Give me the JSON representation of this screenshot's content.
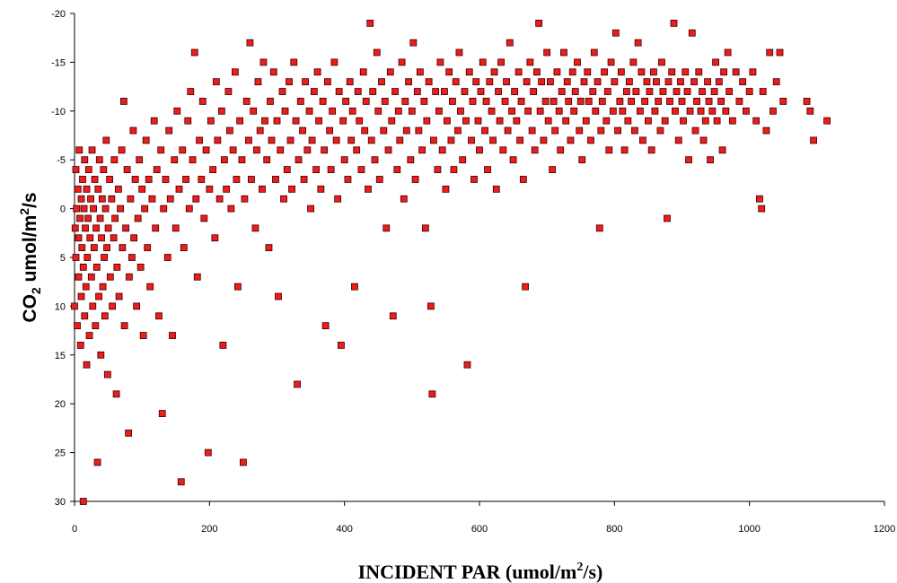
{
  "chart_data": {
    "type": "scatter",
    "title": "",
    "xlabel": {
      "main": "INCIDENT PAR (umol/m",
      "sup": "2",
      "tail": "/s)"
    },
    "ylabel": {
      "pre": "CO",
      "sub": "2",
      "mid": " umol/m",
      "sup": "2",
      "tail": "/s"
    },
    "xlim": [
      0,
      1200
    ],
    "ylim": [
      30,
      -20
    ],
    "y_axis_inverted": true,
    "x_ticks": [
      "0",
      "200",
      "400",
      "600",
      "800",
      "1000",
      "1200"
    ],
    "y_ticks": [
      "-20",
      "-15",
      "-10",
      "-5",
      "0",
      "5",
      "10",
      "15",
      "20",
      "25",
      "30"
    ],
    "grid": false,
    "legend": "none",
    "marker": "square",
    "marker_color": "#ee1c1c",
    "marker_edge_color": "#3a0000",
    "points": [
      [
        0,
        10
      ],
      [
        1,
        2
      ],
      [
        2,
        -4
      ],
      [
        2,
        5
      ],
      [
        3,
        0
      ],
      [
        4,
        12
      ],
      [
        5,
        -2
      ],
      [
        6,
        7
      ],
      [
        6,
        3
      ],
      [
        7,
        -6
      ],
      [
        8,
        1
      ],
      [
        9,
        14
      ],
      [
        10,
        -1
      ],
      [
        10,
        9
      ],
      [
        11,
        4
      ],
      [
        12,
        -3
      ],
      [
        13,
        30
      ],
      [
        13,
        6
      ],
      [
        14,
        0
      ],
      [
        15,
        -5
      ],
      [
        15,
        11
      ],
      [
        16,
        2
      ],
      [
        17,
        8
      ],
      [
        18,
        -2
      ],
      [
        18,
        16
      ],
      [
        19,
        5
      ],
      [
        20,
        1
      ],
      [
        21,
        -4
      ],
      [
        22,
        13
      ],
      [
        23,
        3
      ],
      [
        24,
        -1
      ],
      [
        25,
        7
      ],
      [
        26,
        -6
      ],
      [
        27,
        10
      ],
      [
        28,
        0
      ],
      [
        29,
        4
      ],
      [
        30,
        -3
      ],
      [
        31,
        12
      ],
      [
        32,
        2
      ],
      [
        33,
        6
      ],
      [
        34,
        26
      ],
      [
        35,
        -2
      ],
      [
        36,
        9
      ],
      [
        37,
        -5
      ],
      [
        38,
        1
      ],
      [
        39,
        15
      ],
      [
        40,
        3
      ],
      [
        41,
        -1
      ],
      [
        42,
        8
      ],
      [
        43,
        -4
      ],
      [
        44,
        5
      ],
      [
        45,
        11
      ],
      [
        46,
        0
      ],
      [
        47,
        -7
      ],
      [
        48,
        4
      ],
      [
        49,
        17
      ],
      [
        50,
        2
      ],
      [
        52,
        -3
      ],
      [
        53,
        7
      ],
      [
        55,
        -1
      ],
      [
        56,
        10
      ],
      [
        58,
        3
      ],
      [
        59,
        -5
      ],
      [
        60,
        1
      ],
      [
        62,
        19
      ],
      [
        63,
        6
      ],
      [
        65,
        -2
      ],
      [
        66,
        9
      ],
      [
        68,
        0
      ],
      [
        70,
        -6
      ],
      [
        71,
        4
      ],
      [
        73,
        -11
      ],
      [
        74,
        12
      ],
      [
        76,
        2
      ],
      [
        78,
        -4
      ],
      [
        80,
        23
      ],
      [
        81,
        7
      ],
      [
        83,
        -1
      ],
      [
        85,
        5
      ],
      [
        87,
        -8
      ],
      [
        88,
        3
      ],
      [
        90,
        -3
      ],
      [
        92,
        10
      ],
      [
        94,
        1
      ],
      [
        96,
        -5
      ],
      [
        98,
        6
      ],
      [
        100,
        -2
      ],
      [
        102,
        13
      ],
      [
        104,
        0
      ],
      [
        106,
        -7
      ],
      [
        108,
        4
      ],
      [
        110,
        -3
      ],
      [
        112,
        8
      ],
      [
        115,
        -1
      ],
      [
        118,
        -9
      ],
      [
        120,
        2
      ],
      [
        122,
        -4
      ],
      [
        125,
        11
      ],
      [
        128,
        -6
      ],
      [
        130,
        21
      ],
      [
        132,
        0
      ],
      [
        135,
        -3
      ],
      [
        138,
        5
      ],
      [
        140,
        -8
      ],
      [
        142,
        -1
      ],
      [
        145,
        13
      ],
      [
        148,
        -5
      ],
      [
        150,
        2
      ],
      [
        152,
        -10
      ],
      [
        155,
        -2
      ],
      [
        158,
        28
      ],
      [
        160,
        -6
      ],
      [
        162,
        4
      ],
      [
        165,
        -3
      ],
      [
        168,
        -9
      ],
      [
        170,
        0
      ],
      [
        172,
        -12
      ],
      [
        175,
        -5
      ],
      [
        178,
        -16
      ],
      [
        180,
        -1
      ],
      [
        182,
        7
      ],
      [
        185,
        -7
      ],
      [
        188,
        -3
      ],
      [
        190,
        -11
      ],
      [
        192,
        1
      ],
      [
        195,
        -6
      ],
      [
        198,
        25
      ],
      [
        200,
        -2
      ],
      [
        202,
        -9
      ],
      [
        205,
        -4
      ],
      [
        208,
        3
      ],
      [
        210,
        -13
      ],
      [
        212,
        -7
      ],
      [
        215,
        -1
      ],
      [
        218,
        -10
      ],
      [
        220,
        14
      ],
      [
        222,
        -5
      ],
      [
        225,
        -2
      ],
      [
        228,
        -12
      ],
      [
        230,
        -8
      ],
      [
        232,
        0
      ],
      [
        235,
        -6
      ],
      [
        238,
        -14
      ],
      [
        240,
        -3
      ],
      [
        242,
        8
      ],
      [
        245,
        -9
      ],
      [
        248,
        -5
      ],
      [
        250,
        26
      ],
      [
        252,
        -1
      ],
      [
        255,
        -11
      ],
      [
        258,
        -7
      ],
      [
        260,
        -17
      ],
      [
        262,
        -3
      ],
      [
        265,
        -10
      ],
      [
        268,
        2
      ],
      [
        270,
        -6
      ],
      [
        272,
        -13
      ],
      [
        275,
        -8
      ],
      [
        278,
        -2
      ],
      [
        280,
        -15
      ],
      [
        282,
        -9
      ],
      [
        285,
        -5
      ],
      [
        288,
        4
      ],
      [
        290,
        -11
      ],
      [
        292,
        -7
      ],
      [
        295,
        -14
      ],
      [
        298,
        -3
      ],
      [
        300,
        -9
      ],
      [
        302,
        9
      ],
      [
        305,
        -6
      ],
      [
        308,
        -12
      ],
      [
        310,
        -1
      ],
      [
        312,
        -10
      ],
      [
        315,
        -4
      ],
      [
        318,
        -13
      ],
      [
        320,
        -7
      ],
      [
        322,
        -2
      ],
      [
        325,
        -15
      ],
      [
        328,
        -9
      ],
      [
        330,
        18
      ],
      [
        332,
        -5
      ],
      [
        335,
        -11
      ],
      [
        338,
        -8
      ],
      [
        340,
        -3
      ],
      [
        342,
        -13
      ],
      [
        345,
        -6
      ],
      [
        348,
        -10
      ],
      [
        350,
        0
      ],
      [
        352,
        -7
      ],
      [
        355,
        -12
      ],
      [
        358,
        -4
      ],
      [
        360,
        -14
      ],
      [
        362,
        -9
      ],
      [
        365,
        -2
      ],
      [
        368,
        -11
      ],
      [
        370,
        -6
      ],
      [
        372,
        12
      ],
      [
        375,
        -13
      ],
      [
        378,
        -8
      ],
      [
        380,
        -4
      ],
      [
        382,
        -10
      ],
      [
        385,
        -15
      ],
      [
        388,
        -7
      ],
      [
        390,
        -1
      ],
      [
        392,
        -12
      ],
      [
        395,
        14
      ],
      [
        398,
        -9
      ],
      [
        400,
        -5
      ],
      [
        402,
        -11
      ],
      [
        405,
        -3
      ],
      [
        408,
        -13
      ],
      [
        410,
        -7
      ],
      [
        412,
        -10
      ],
      [
        415,
        8
      ],
      [
        418,
        -6
      ],
      [
        420,
        -12
      ],
      [
        422,
        -9
      ],
      [
        425,
        -4
      ],
      [
        428,
        -14
      ],
      [
        430,
        -8
      ],
      [
        432,
        -11
      ],
      [
        435,
        -2
      ],
      [
        438,
        -19
      ],
      [
        440,
        -7
      ],
      [
        442,
        -12
      ],
      [
        445,
        -5
      ],
      [
        448,
        -16
      ],
      [
        450,
        -10
      ],
      [
        452,
        -3
      ],
      [
        455,
        -13
      ],
      [
        458,
        -8
      ],
      [
        460,
        -11
      ],
      [
        462,
        2
      ],
      [
        465,
        -6
      ],
      [
        468,
        -14
      ],
      [
        470,
        -9
      ],
      [
        472,
        11
      ],
      [
        475,
        -12
      ],
      [
        478,
        -4
      ],
      [
        480,
        -10
      ],
      [
        482,
        -7
      ],
      [
        485,
        -15
      ],
      [
        488,
        -1
      ],
      [
        490,
        -11
      ],
      [
        492,
        -8
      ],
      [
        495,
        -13
      ],
      [
        498,
        -5
      ],
      [
        500,
        -10
      ],
      [
        502,
        -17
      ],
      [
        505,
        -3
      ],
      [
        508,
        -12
      ],
      [
        510,
        -8
      ],
      [
        512,
        -14
      ],
      [
        515,
        -6
      ],
      [
        518,
        -11
      ],
      [
        520,
        2
      ],
      [
        522,
        -9
      ],
      [
        525,
        -13
      ],
      [
        528,
        10
      ],
      [
        530,
        19
      ],
      [
        532,
        -7
      ],
      [
        535,
        -12
      ],
      [
        538,
        -4
      ],
      [
        540,
        -10
      ],
      [
        542,
        -15
      ],
      [
        545,
        -6
      ],
      [
        548,
        -12
      ],
      [
        550,
        -2
      ],
      [
        552,
        -9
      ],
      [
        555,
        -14
      ],
      [
        558,
        -7
      ],
      [
        560,
        -11
      ],
      [
        562,
        -4
      ],
      [
        565,
        -13
      ],
      [
        568,
        -8
      ],
      [
        570,
        -16
      ],
      [
        572,
        -10
      ],
      [
        575,
        -5
      ],
      [
        578,
        -12
      ],
      [
        580,
        -9
      ],
      [
        582,
        16
      ],
      [
        585,
        -14
      ],
      [
        588,
        -7
      ],
      [
        590,
        -11
      ],
      [
        592,
        -3
      ],
      [
        595,
        -13
      ],
      [
        598,
        -9
      ],
      [
        600,
        -6
      ],
      [
        602,
        -12
      ],
      [
        605,
        -15
      ],
      [
        608,
        -8
      ],
      [
        610,
        -11
      ],
      [
        612,
        -4
      ],
      [
        615,
        -13
      ],
      [
        618,
        -10
      ],
      [
        620,
        -7
      ],
      [
        622,
        -14
      ],
      [
        625,
        -2
      ],
      [
        628,
        -12
      ],
      [
        630,
        -9
      ],
      [
        632,
        -15
      ],
      [
        635,
        -6
      ],
      [
        638,
        -11
      ],
      [
        640,
        -13
      ],
      [
        642,
        -8
      ],
      [
        645,
        -17
      ],
      [
        648,
        -10
      ],
      [
        650,
        -5
      ],
      [
        652,
        -12
      ],
      [
        655,
        -9
      ],
      [
        658,
        -14
      ],
      [
        660,
        -7
      ],
      [
        662,
        -11
      ],
      [
        665,
        -3
      ],
      [
        668,
        8
      ],
      [
        670,
        -13
      ],
      [
        672,
        -10
      ],
      [
        675,
        -15
      ],
      [
        678,
        -8
      ],
      [
        680,
        -12
      ],
      [
        682,
        -6
      ],
      [
        685,
        -14
      ],
      [
        688,
        -19
      ],
      [
        690,
        -10
      ],
      [
        692,
        -13
      ],
      [
        695,
        -7
      ],
      [
        698,
        -11
      ],
      [
        700,
        -16
      ],
      [
        702,
        -9
      ],
      [
        705,
        -13
      ],
      [
        708,
        -4
      ],
      [
        710,
        -11
      ],
      [
        712,
        -8
      ],
      [
        715,
        -14
      ],
      [
        718,
        -10
      ],
      [
        720,
        -6
      ],
      [
        722,
        -12
      ],
      [
        725,
        -16
      ],
      [
        728,
        -9
      ],
      [
        730,
        -13
      ],
      [
        732,
        -11
      ],
      [
        735,
        -7
      ],
      [
        738,
        -14
      ],
      [
        740,
        -10
      ],
      [
        742,
        -12
      ],
      [
        745,
        -15
      ],
      [
        748,
        -8
      ],
      [
        750,
        -11
      ],
      [
        752,
        -5
      ],
      [
        755,
        -13
      ],
      [
        758,
        -9
      ],
      [
        760,
        -14
      ],
      [
        762,
        -11
      ],
      [
        765,
        -7
      ],
      [
        768,
        -12
      ],
      [
        770,
        -16
      ],
      [
        772,
        -10
      ],
      [
        775,
        -13
      ],
      [
        778,
        2
      ],
      [
        780,
        -8
      ],
      [
        782,
        -11
      ],
      [
        785,
        -14
      ],
      [
        788,
        -9
      ],
      [
        790,
        -12
      ],
      [
        792,
        -6
      ],
      [
        795,
        -15
      ],
      [
        798,
        -10
      ],
      [
        800,
        -13
      ],
      [
        802,
        -18
      ],
      [
        805,
        -8
      ],
      [
        808,
        -11
      ],
      [
        810,
        -14
      ],
      [
        812,
        -10
      ],
      [
        815,
        -6
      ],
      [
        818,
        -12
      ],
      [
        820,
        -9
      ],
      [
        822,
        -13
      ],
      [
        825,
        -11
      ],
      [
        828,
        -15
      ],
      [
        830,
        -8
      ],
      [
        832,
        -12
      ],
      [
        835,
        -17
      ],
      [
        838,
        -10
      ],
      [
        840,
        -14
      ],
      [
        842,
        -7
      ],
      [
        845,
        -11
      ],
      [
        848,
        -13
      ],
      [
        850,
        -9
      ],
      [
        852,
        -12
      ],
      [
        855,
        -6
      ],
      [
        858,
        -14
      ],
      [
        860,
        -10
      ],
      [
        862,
        -13
      ],
      [
        865,
        -11
      ],
      [
        868,
        -8
      ],
      [
        870,
        -15
      ],
      [
        872,
        -12
      ],
      [
        875,
        -9
      ],
      [
        878,
        1
      ],
      [
        880,
        -13
      ],
      [
        882,
        -11
      ],
      [
        885,
        -14
      ],
      [
        888,
        -19
      ],
      [
        890,
        -10
      ],
      [
        892,
        -12
      ],
      [
        895,
        -7
      ],
      [
        898,
        -13
      ],
      [
        900,
        -11
      ],
      [
        902,
        -9
      ],
      [
        905,
        -14
      ],
      [
        908,
        -12
      ],
      [
        910,
        -5
      ],
      [
        912,
        -10
      ],
      [
        915,
        -18
      ],
      [
        918,
        -13
      ],
      [
        920,
        -8
      ],
      [
        922,
        -11
      ],
      [
        925,
        -14
      ],
      [
        928,
        -10
      ],
      [
        930,
        -12
      ],
      [
        932,
        -7
      ],
      [
        935,
        -9
      ],
      [
        938,
        -13
      ],
      [
        940,
        -11
      ],
      [
        942,
        -5
      ],
      [
        945,
        -10
      ],
      [
        948,
        -12
      ],
      [
        950,
        -15
      ],
      [
        952,
        -9
      ],
      [
        955,
        -13
      ],
      [
        958,
        -11
      ],
      [
        960,
        -6
      ],
      [
        962,
        -14
      ],
      [
        965,
        -10
      ],
      [
        968,
        -16
      ],
      [
        970,
        -12
      ],
      [
        975,
        -9
      ],
      [
        980,
        -14
      ],
      [
        985,
        -11
      ],
      [
        990,
        -13
      ],
      [
        995,
        -10
      ],
      [
        1000,
        -12
      ],
      [
        1005,
        -14
      ],
      [
        1010,
        -9
      ],
      [
        1015,
        -1
      ],
      [
        1018,
        0
      ],
      [
        1020,
        -12
      ],
      [
        1025,
        -8
      ],
      [
        1030,
        -16
      ],
      [
        1035,
        -10
      ],
      [
        1040,
        -13
      ],
      [
        1045,
        -16
      ],
      [
        1050,
        -11
      ],
      [
        1085,
        -11
      ],
      [
        1090,
        -10
      ],
      [
        1095,
        -7
      ],
      [
        1115,
        -9
      ]
    ]
  }
}
